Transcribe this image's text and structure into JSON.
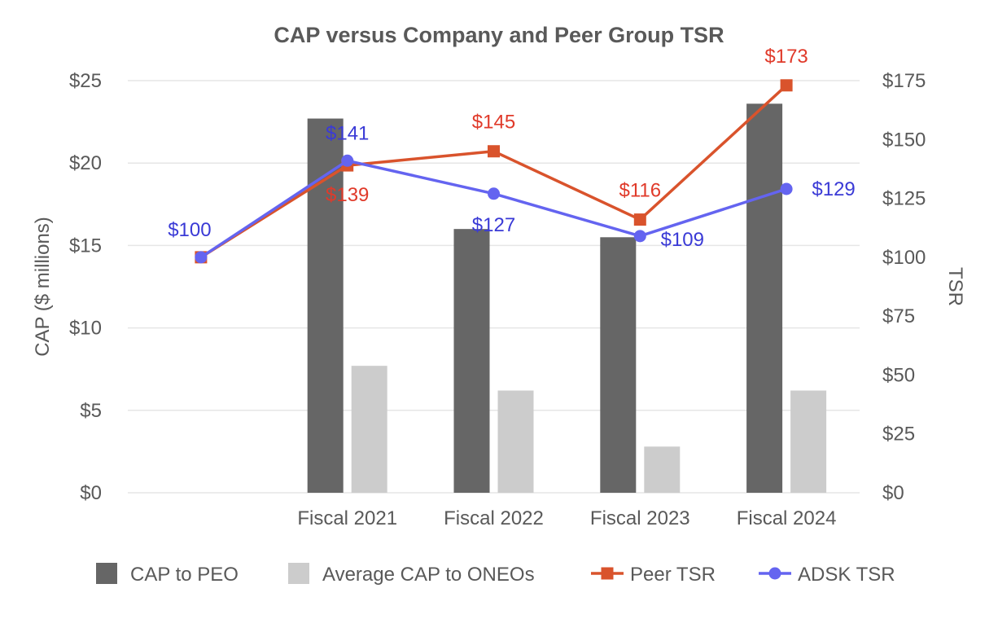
{
  "chart_data": {
    "type": "bar+line",
    "title": "CAP versus Company and Peer Group TSR",
    "categories": [
      "",
      "Fiscal 2021",
      "Fiscal 2022",
      "Fiscal 2023",
      "Fiscal 2024"
    ],
    "y_left": {
      "label": "CAP ($ millions)",
      "range": [
        0,
        25
      ],
      "ticks": [
        0,
        5,
        10,
        15,
        20,
        25
      ],
      "tick_labels": [
        "$0",
        "$5",
        "$10",
        "$15",
        "$20",
        "$25"
      ]
    },
    "y_right": {
      "label": "TSR",
      "range": [
        0,
        175
      ],
      "ticks": [
        0,
        25,
        50,
        75,
        100,
        125,
        150,
        175
      ],
      "tick_labels": [
        "$0",
        "$25",
        "$50",
        "$75",
        "$100",
        "$125",
        "$150",
        "$175"
      ]
    },
    "bar_series": [
      {
        "name": "CAP to PEO",
        "color": "#666666",
        "values": [
          null,
          22.7,
          16.0,
          15.5,
          23.6
        ]
      },
      {
        "name": "Average CAP to ONEOs",
        "color": "#cccccc",
        "values": [
          null,
          7.7,
          6.2,
          2.8,
          6.2
        ]
      }
    ],
    "line_series": [
      {
        "name": "Peer TSR",
        "color": "#d9532c",
        "label_color": "#e03a2a",
        "marker": "square",
        "values": [
          100,
          139,
          145,
          116,
          173
        ],
        "labels": [
          "",
          "$139",
          "$145",
          "$116",
          "$173"
        ]
      },
      {
        "name": "ADSK TSR",
        "color": "#6464f0",
        "label_color": "#3a3ad6",
        "marker": "circle",
        "values": [
          100,
          141,
          127,
          109,
          129
        ],
        "labels": [
          "$100",
          "$141",
          "$127",
          "$109",
          "$129"
        ]
      }
    ],
    "legend": {
      "position": "bottom",
      "items": [
        "CAP to PEO",
        "Average CAP to ONEOs",
        "Peer TSR",
        "ADSK TSR"
      ]
    },
    "grid": true
  }
}
